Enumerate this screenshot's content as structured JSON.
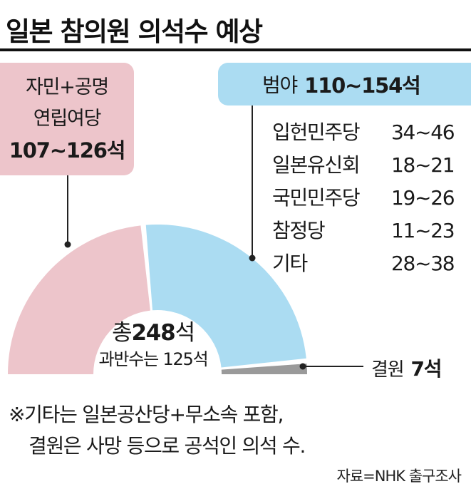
{
  "title": "일본 참의원 의석수 예상",
  "ruling": {
    "line1": "자민+공명",
    "line2": "연립여당",
    "seats": "107~126석"
  },
  "opposition": {
    "label": "범야",
    "seats": "110~154석",
    "parties": [
      {
        "name": "입헌민주당",
        "range": "34~46"
      },
      {
        "name": "일본유신회",
        "range": "18~21"
      },
      {
        "name": "국민민주당",
        "range": "19~26"
      },
      {
        "name": "참정당",
        "range": "11~23"
      },
      {
        "name": "기타",
        "range": "28~38"
      }
    ]
  },
  "total": {
    "prefix": "총 ",
    "number": "248",
    "suffix": "석"
  },
  "majority_text": "과반수는 125석",
  "vacant": {
    "label": "결원",
    "seats": "7석"
  },
  "notes": [
    "※기타는 일본공산당+무소속 포함,",
    "  결원은 사망 등으로 공석인 의석 수."
  ],
  "source": "자료=NHK 출구조사",
  "colors": {
    "ruling": "#edc5cb",
    "opposition": "#abdcf2",
    "vacant": "#9a9a9a",
    "leader_line": "#222222"
  },
  "chart_data": {
    "type": "pie",
    "subtype": "half-donut",
    "total": 248,
    "majority": 125,
    "slices": [
      {
        "label": "자민+공명 연립여당",
        "range": [
          107,
          126
        ],
        "value": 116.5
      },
      {
        "label": "범야",
        "range": [
          110,
          154
        ],
        "value": 124.5
      },
      {
        "label": "결원",
        "value": 7
      }
    ]
  }
}
